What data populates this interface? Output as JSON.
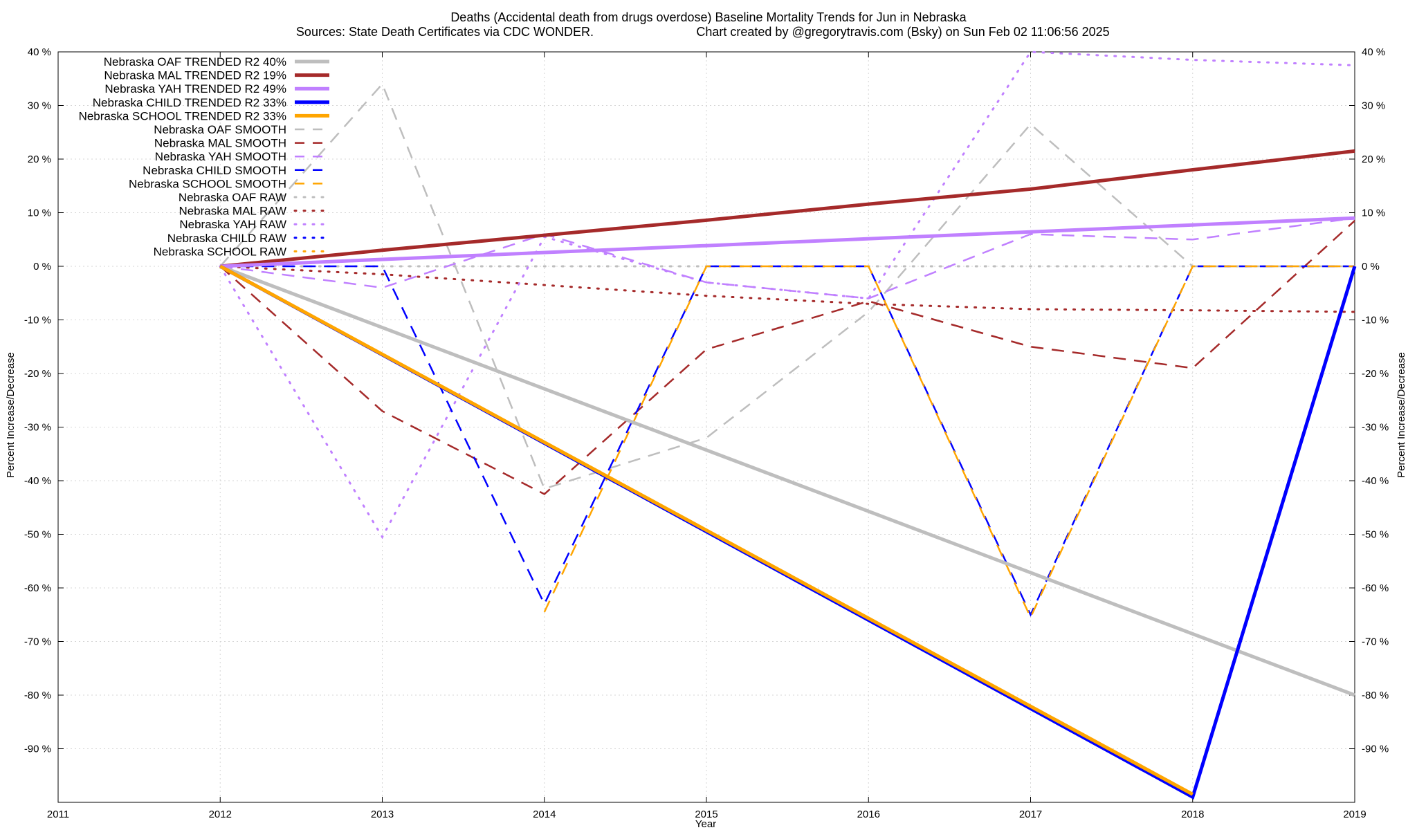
{
  "chart_data": {
    "type": "line",
    "title": "Deaths (Accidental death from drugs overdose)  Baseline Mortality Trends for Jun in Nebraska",
    "subtitle_left": "Sources: State Death Certificates via CDC WONDER.",
    "subtitle_right": "Chart created by @gregorytravis.com (Bsky) on Sun Feb 02 11:06:56 2025",
    "xlabel": "Year",
    "ylabel": "Percent Increase/Decrease",
    "y2label": "Percent Increase/Decrease",
    "xlim": [
      2011,
      2019
    ],
    "ylim": [
      -100,
      40
    ],
    "x_ticks": [
      2011,
      2012,
      2013,
      2014,
      2015,
      2016,
      2017,
      2018,
      2019
    ],
    "y_ticks": [
      40,
      30,
      20,
      10,
      0,
      -10,
      -20,
      -30,
      -40,
      -50,
      -60,
      -70,
      -80,
      -90
    ],
    "y_tick_labels": [
      "40 %",
      "30 %",
      "20 %",
      "10 %",
      "0 %",
      "-10 %",
      "-20 %",
      "-30 %",
      "-40 %",
      "-50 %",
      "-60 %",
      "-70 %",
      "-80 %",
      "-90 %"
    ],
    "grid": true,
    "legend_position": "top-left",
    "series": [
      {
        "name": "Nebraska OAF TRENDED R2  40%",
        "color": "#bebebe",
        "style": "solid",
        "x": [
          2012,
          2019
        ],
        "y": [
          0,
          -80
        ]
      },
      {
        "name": "Nebraska MAL TRENDED R2  19%",
        "color": "#a52a2a",
        "style": "solid",
        "x": [
          2012,
          2013,
          2014,
          2015,
          2016,
          2017,
          2018,
          2019
        ],
        "y": [
          0,
          3,
          5.8,
          8.6,
          11.6,
          14.4,
          18,
          21.5
        ]
      },
      {
        "name": "Nebraska YAH TRENDED R2  49%",
        "color": "#c080ff",
        "style": "solid",
        "x": [
          2012,
          2019
        ],
        "y": [
          0,
          9
        ]
      },
      {
        "name": "Nebraska CHILD TRENDED R2  33%",
        "color": "#0000ff",
        "style": "solid",
        "x": [
          2012,
          2018,
          2019
        ],
        "y": [
          0,
          -99,
          0
        ]
      },
      {
        "name": "Nebraska SCHOOL TRENDED R2  33%",
        "color": "#ffa500",
        "style": "solid",
        "x": [
          2012,
          2018
        ],
        "y": [
          0,
          -98.5
        ]
      },
      {
        "name": "Nebraska OAF SMOOTH",
        "color": "#bebebe",
        "style": "dashed",
        "x": [
          2012,
          2013,
          2014,
          2015,
          2016,
          2017,
          2018,
          2019
        ],
        "y": [
          0,
          34,
          -41.5,
          -32,
          -8.5,
          26.5,
          0,
          0
        ]
      },
      {
        "name": "Nebraska MAL SMOOTH",
        "color": "#a52a2a",
        "style": "dashed",
        "x": [
          2012,
          2013,
          2014,
          2015,
          2016,
          2017,
          2018,
          2019
        ],
        "y": [
          0,
          -27,
          -42.5,
          -15.5,
          -6.5,
          -15,
          -19,
          8.5
        ]
      },
      {
        "name": "Nebraska YAH SMOOTH",
        "color": "#c080ff",
        "style": "dashed",
        "x": [
          2012,
          2013,
          2014,
          2015,
          2016,
          2017,
          2018,
          2019
        ],
        "y": [
          0,
          -4,
          6,
          -3,
          -6,
          6,
          5,
          9
        ]
      },
      {
        "name": "Nebraska CHILD SMOOTH",
        "color": "#0000ff",
        "style": "dashed",
        "x": [
          2012,
          2013,
          2014,
          2015,
          2016,
          2017,
          2018,
          2019
        ],
        "y": [
          0,
          0,
          -63,
          0,
          0,
          -65,
          0,
          0
        ]
      },
      {
        "name": "Nebraska SCHOOL SMOOTH",
        "color": "#ffa500",
        "style": "dashed",
        "x": [
          2014,
          2015,
          2016,
          2017,
          2018,
          2019
        ],
        "y": [
          -64.5,
          0,
          0,
          -65.5,
          0,
          0
        ]
      },
      {
        "name": "Nebraska OAF RAW",
        "color": "#bebebe",
        "style": "dotted",
        "x": [
          2012,
          2019
        ],
        "y": [
          0,
          0
        ]
      },
      {
        "name": "Nebraska MAL RAW",
        "color": "#a52a2a",
        "style": "dotted",
        "x": [
          2012,
          2013,
          2014,
          2015,
          2016,
          2017,
          2018,
          2019
        ],
        "y": [
          0,
          -1.5,
          -3.5,
          -5.5,
          -7,
          -8,
          -8.2,
          -8.5
        ]
      },
      {
        "name": "Nebraska YAH RAW",
        "color": "#c080ff",
        "style": "dotted",
        "x": [
          2012,
          2013,
          2014,
          2015,
          2016,
          2017,
          2018,
          2019
        ],
        "y": [
          0,
          -50.5,
          5.5,
          -3,
          -6,
          40,
          38.5,
          37.5
        ]
      },
      {
        "name": "Nebraska CHILD RAW",
        "color": "#0000ff",
        "style": "dotted",
        "x": [],
        "y": []
      },
      {
        "name": "Nebraska SCHOOL RAW",
        "color": "#ffa500",
        "style": "dotted",
        "x": [],
        "y": []
      }
    ]
  }
}
